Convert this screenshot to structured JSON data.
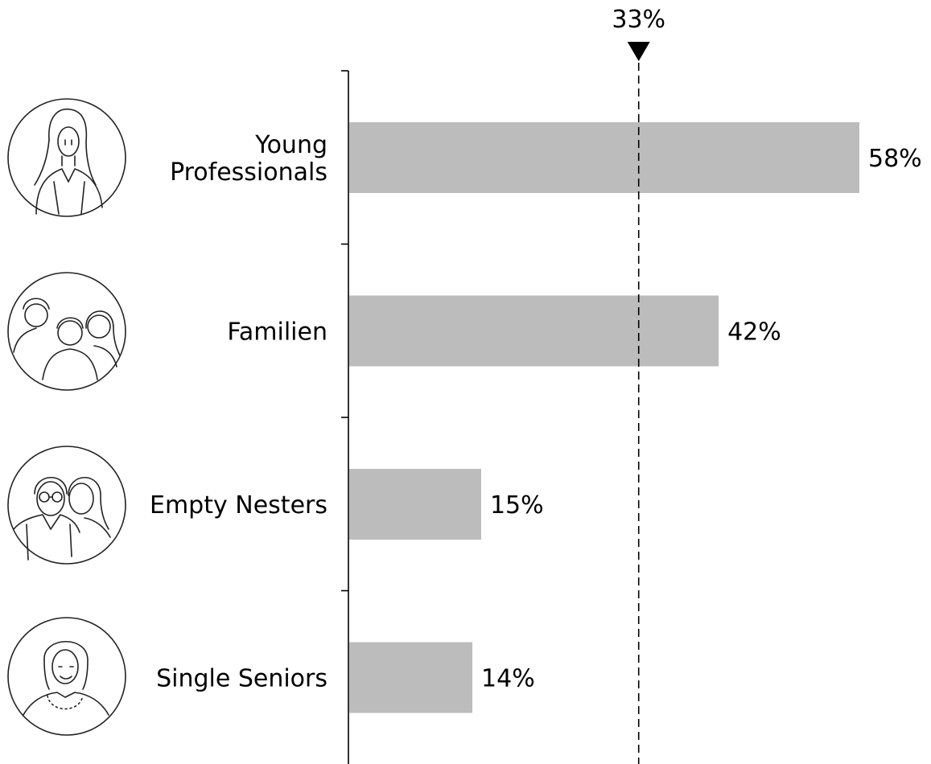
{
  "chart_data": {
    "type": "bar",
    "orientation": "horizontal",
    "categories": [
      "Young Professionals",
      "Familien",
      "Empty Nesters",
      "Single Seniors"
    ],
    "category_lines": [
      [
        "Young",
        "Professionals"
      ],
      [
        "Familien"
      ],
      [
        "Empty Nesters"
      ],
      [
        "Single Seniors"
      ]
    ],
    "values": [
      58,
      42,
      15,
      14
    ],
    "value_labels": [
      "58%",
      "42%",
      "15%",
      "14%"
    ],
    "xlim": [
      0,
      58
    ],
    "reference_line": {
      "value": 33,
      "label": "33%",
      "style": "dashed",
      "marker": "triangle-down"
    },
    "bar_color": "#bbbcbb",
    "grid": false,
    "legend": "none"
  },
  "avatars": [
    {
      "icon": "young-professional-woman-icon"
    },
    {
      "icon": "family-group-icon"
    },
    {
      "icon": "older-couple-icon"
    },
    {
      "icon": "senior-woman-icon"
    }
  ]
}
